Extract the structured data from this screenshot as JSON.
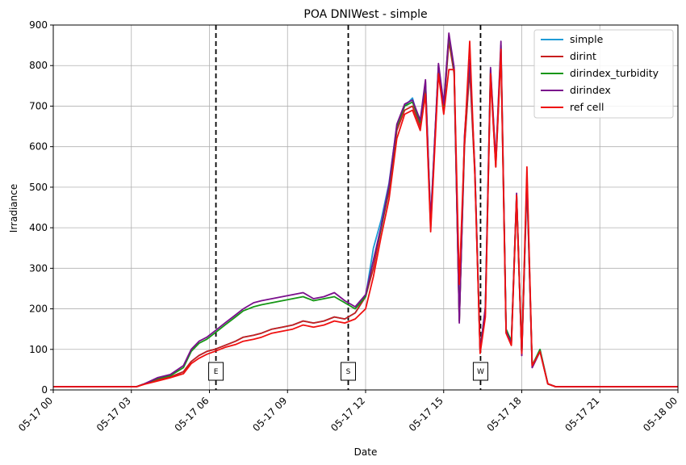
{
  "chart_data": {
    "type": "line",
    "title": "POA DNIWest - simple",
    "xlabel": "Date",
    "ylabel": "Irradiance",
    "xlim": [
      "2024-05-17 00:00",
      "2024-05-18 00:00"
    ],
    "ylim": [
      0,
      900
    ],
    "grid": true,
    "legend_position": "top-right",
    "x_ticks": [
      "05-17 00",
      "05-17 03",
      "05-17 06",
      "05-17 09",
      "05-17 12",
      "05-17 15",
      "05-17 18",
      "05-17 21",
      "05-18 00"
    ],
    "y_ticks": [
      0,
      100,
      200,
      300,
      400,
      500,
      600,
      700,
      800,
      900
    ],
    "markers": [
      {
        "label": "E",
        "time": "05-17 06:15"
      },
      {
        "label": "S",
        "time": "05-17 11:20"
      },
      {
        "label": "W",
        "time": "05-17 16:25"
      }
    ],
    "x_hours": [
      0,
      3.2,
      3.5,
      4.0,
      4.5,
      5.0,
      5.3,
      5.6,
      5.9,
      6.2,
      6.6,
      7.0,
      7.3,
      7.7,
      8.0,
      8.4,
      8.8,
      9.2,
      9.6,
      10.0,
      10.4,
      10.8,
      11.2,
      11.6,
      12.0,
      12.3,
      12.6,
      12.9,
      13.2,
      13.5,
      13.8,
      14.1,
      14.3,
      14.5,
      14.8,
      15.0,
      15.2,
      15.4,
      15.6,
      15.8,
      16.0,
      16.2,
      16.4,
      16.6,
      16.8,
      17.0,
      17.2,
      17.4,
      17.6,
      17.8,
      18.0,
      18.2,
      18.4,
      18.7,
      19.0,
      19.3,
      24
    ],
    "series": [
      {
        "name": "simple",
        "color": "#1f9bd6",
        "values": [
          8,
          8,
          15,
          25,
          32,
          45,
          70,
          85,
          95,
          100,
          110,
          120,
          130,
          135,
          140,
          150,
          155,
          160,
          170,
          165,
          170,
          180,
          175,
          190,
          230,
          350,
          420,
          510,
          650,
          700,
          720,
          650,
          750,
          420,
          800,
          700,
          870,
          790,
          180,
          600,
          800,
          540,
          100,
          200,
          780,
          560,
          840,
          150,
          120,
          480,
          90,
          520,
          60,
          100,
          15,
          8,
          8
        ]
      },
      {
        "name": "dirint",
        "color": "#c81e1e",
        "values": [
          8,
          8,
          15,
          25,
          32,
          45,
          70,
          85,
          95,
          100,
          110,
          120,
          130,
          135,
          140,
          150,
          155,
          160,
          170,
          165,
          170,
          180,
          175,
          190,
          230,
          300,
          400,
          490,
          640,
          690,
          700,
          650,
          740,
          400,
          790,
          690,
          860,
          780,
          170,
          600,
          790,
          530,
          95,
          190,
          770,
          550,
          830,
          140,
          110,
          470,
          85,
          510,
          55,
          95,
          15,
          8,
          8
        ]
      },
      {
        "name": "dirindex_turbidity",
        "color": "#159615",
        "values": [
          8,
          8,
          15,
          28,
          35,
          55,
          95,
          115,
          125,
          140,
          160,
          180,
          195,
          205,
          210,
          215,
          220,
          225,
          230,
          220,
          225,
          230,
          215,
          200,
          230,
          320,
          400,
          500,
          650,
          700,
          710,
          660,
          760,
          410,
          800,
          700,
          875,
          790,
          170,
          620,
          810,
          540,
          100,
          200,
          790,
          560,
          850,
          150,
          120,
          480,
          90,
          520,
          60,
          100,
          15,
          8,
          8
        ]
      },
      {
        "name": "dirindex",
        "color": "#7a0f8c",
        "values": [
          8,
          8,
          15,
          30,
          38,
          60,
          100,
          120,
          130,
          145,
          165,
          185,
          200,
          215,
          220,
          225,
          230,
          235,
          240,
          225,
          230,
          240,
          220,
          205,
          235,
          320,
          405,
          505,
          655,
          705,
          715,
          665,
          765,
          415,
          805,
          705,
          880,
          795,
          165,
          625,
          815,
          545,
          95,
          205,
          795,
          565,
          860,
          145,
          115,
          485,
          85,
          525,
          55,
          95,
          15,
          8,
          8
        ]
      },
      {
        "name": "ref cell",
        "color": "#f01010",
        "values": [
          8,
          8,
          14,
          22,
          30,
          40,
          65,
          78,
          88,
          95,
          105,
          112,
          120,
          125,
          130,
          140,
          145,
          150,
          160,
          155,
          160,
          170,
          165,
          175,
          200,
          280,
          380,
          470,
          620,
          680,
          690,
          640,
          730,
          390,
          780,
          680,
          790,
          790,
          260,
          610,
          860,
          530,
          90,
          180,
          780,
          550,
          840,
          140,
          110,
          480,
          90,
          550,
          60,
          95,
          15,
          8,
          8
        ]
      }
    ]
  }
}
